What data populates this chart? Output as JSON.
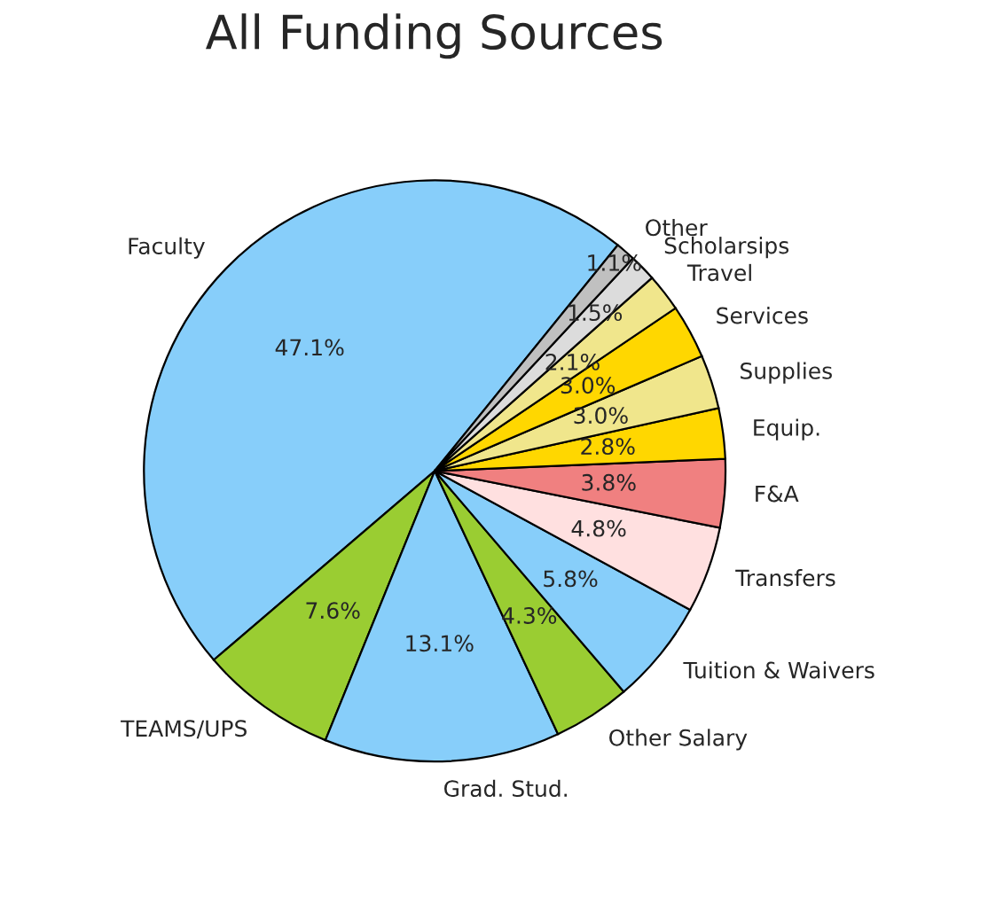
{
  "chart_data": {
    "type": "pie",
    "title": "All Funding Sources",
    "categories": [
      "Faculty",
      "TEAMS/UPS",
      "Grad. Stud.",
      "Other Salary",
      "Tuition & Waivers",
      "Transfers",
      "F&A",
      "Equip.",
      "Supplies",
      "Services",
      "Travel",
      "Scholarsips",
      "Other"
    ],
    "values": [
      47.1,
      7.6,
      13.1,
      4.3,
      5.8,
      4.8,
      3.8,
      2.8,
      3.0,
      3.0,
      2.1,
      1.5,
      1.1
    ],
    "colors": [
      "#87cefa",
      "#9acd32",
      "#87cefa",
      "#9acd32",
      "#87cefa",
      "#ffe0e0",
      "#f08080",
      "#ffd700",
      "#f0e68c",
      "#ffd700",
      "#f0e68c",
      "#dcdcdc",
      "#c0c0c0"
    ],
    "value_labels": [
      "47.1%",
      "7.6%",
      "13.1%",
      "4.3%",
      "5.8%",
      "4.8%",
      "3.8%",
      "2.8%",
      "3.0%",
      "3.0%",
      "2.1%",
      "1.5%",
      "1.1%"
    ]
  }
}
